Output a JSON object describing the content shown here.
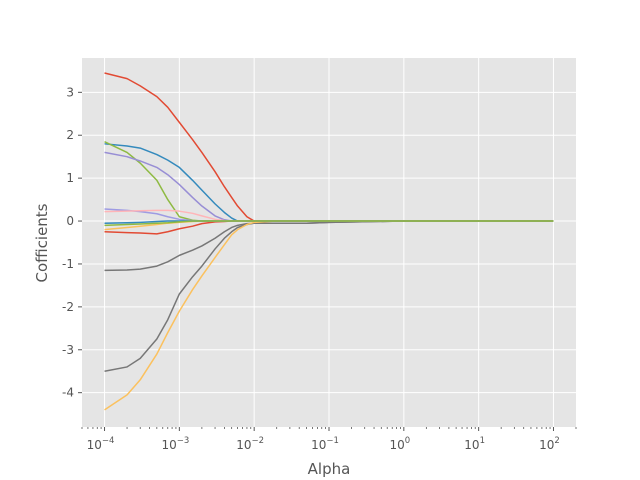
{
  "chart_data": {
    "type": "line",
    "title": "",
    "xlabel": "Alpha",
    "ylabel": "Cofficients",
    "xscale": "log",
    "xlim": [
      5e-05,
      200
    ],
    "ylim": [
      -4.8,
      3.8
    ],
    "grid": true,
    "background": "#E5E5E5",
    "x_ticks": [
      {
        "base": "10",
        "exp": "−4",
        "value": 0.0001
      },
      {
        "base": "10",
        "exp": "−3",
        "value": 0.001
      },
      {
        "base": "10",
        "exp": "−2",
        "value": 0.01
      },
      {
        "base": "10",
        "exp": "−1",
        "value": 0.1
      },
      {
        "base": "10",
        "exp": "0",
        "value": 1
      },
      {
        "base": "10",
        "exp": "1",
        "value": 10
      },
      {
        "base": "10",
        "exp": "2",
        "value": 100
      }
    ],
    "y_ticks": [
      {
        "label": "3",
        "value": 3
      },
      {
        "label": "2",
        "value": 2
      },
      {
        "label": "1",
        "value": 1
      },
      {
        "label": "0",
        "value": 0
      },
      {
        "label": "-1",
        "value": -1
      },
      {
        "label": "-2",
        "value": -2
      },
      {
        "label": "-3",
        "value": -3
      },
      {
        "label": "-4",
        "value": -4
      }
    ],
    "x": [
      0.0001,
      0.0002,
      0.0003,
      0.0005,
      0.0007,
      0.001,
      0.0015,
      0.002,
      0.003,
      0.004,
      0.005,
      0.006,
      0.008,
      0.01,
      0.02,
      0.05,
      0.1,
      1,
      10,
      100
    ],
    "series": [
      {
        "color": "#E24A33",
        "values": [
          3.45,
          3.32,
          3.15,
          2.9,
          2.65,
          2.3,
          1.9,
          1.6,
          1.15,
          0.8,
          0.55,
          0.35,
          0.1,
          0,
          0,
          0,
          0,
          0,
          0,
          0
        ]
      },
      {
        "color": "#348ABD",
        "values": [
          1.8,
          1.75,
          1.7,
          1.55,
          1.42,
          1.25,
          0.95,
          0.72,
          0.4,
          0.2,
          0.07,
          0,
          0,
          0,
          0,
          0,
          0,
          0,
          0,
          0
        ]
      },
      {
        "color": "#8EBA42",
        "values": [
          1.85,
          1.6,
          1.35,
          0.95,
          0.5,
          0.1,
          0.02,
          0,
          0,
          0,
          0,
          0,
          0,
          0,
          0,
          0,
          0,
          0,
          0,
          0
        ]
      },
      {
        "color": "#988ED5",
        "values": [
          1.6,
          1.5,
          1.4,
          1.25,
          1.08,
          0.85,
          0.55,
          0.35,
          0.12,
          0.03,
          0,
          0,
          0,
          0,
          0,
          0,
          0,
          0,
          0,
          0
        ]
      },
      {
        "color": "#9E9BE3",
        "values": [
          0.28,
          0.25,
          0.22,
          0.17,
          0.1,
          0.04,
          0.01,
          0,
          0,
          0,
          0,
          0,
          0,
          0,
          0,
          0,
          0,
          0,
          0,
          0
        ]
      },
      {
        "color": "#FFB5B8",
        "values": [
          0.22,
          0.23,
          0.24,
          0.25,
          0.25,
          0.23,
          0.18,
          0.12,
          0.04,
          0.01,
          0,
          0,
          0,
          0,
          0,
          0,
          0,
          0,
          0,
          0
        ]
      },
      {
        "color": "#777777",
        "values": [
          -1.15,
          -1.14,
          -1.12,
          -1.05,
          -0.95,
          -0.8,
          -0.68,
          -0.58,
          -0.4,
          -0.25,
          -0.15,
          -0.1,
          -0.06,
          -0.05,
          -0.05,
          -0.05,
          -0.03,
          0,
          0,
          0
        ]
      },
      {
        "color": "#777777",
        "values": [
          -3.5,
          -3.4,
          -3.2,
          -2.75,
          -2.3,
          -1.7,
          -1.3,
          -1.05,
          -0.65,
          -0.4,
          -0.25,
          -0.15,
          -0.08,
          -0.05,
          -0.05,
          -0.05,
          -0.03,
          0,
          0,
          0
        ]
      },
      {
        "color": "#FBC15E",
        "values": [
          -4.4,
          -4.05,
          -3.7,
          -3.1,
          -2.6,
          -2.1,
          -1.6,
          -1.28,
          -0.85,
          -0.55,
          -0.32,
          -0.2,
          -0.08,
          -0.03,
          0,
          0,
          0,
          0,
          0,
          0
        ]
      },
      {
        "color": "#E24A33",
        "values": [
          -0.25,
          -0.27,
          -0.28,
          -0.3,
          -0.25,
          -0.18,
          -0.12,
          -0.06,
          -0.02,
          -0.01,
          0,
          0,
          0,
          0,
          0,
          0,
          0,
          0,
          0,
          0
        ]
      },
      {
        "color": "#FBC15E",
        "values": [
          -0.2,
          -0.15,
          -0.12,
          -0.08,
          -0.05,
          -0.03,
          -0.01,
          0,
          0,
          0,
          0,
          0,
          0,
          0,
          0,
          0,
          0,
          0,
          0,
          0
        ]
      },
      {
        "color": "#348ABD",
        "values": [
          -0.05,
          -0.04,
          -0.03,
          -0.01,
          0,
          0,
          0,
          0,
          0,
          0,
          0,
          0,
          0,
          0,
          0,
          0,
          0,
          0,
          0,
          0
        ]
      },
      {
        "color": "#8EBA42",
        "values": [
          -0.1,
          -0.08,
          -0.07,
          -0.05,
          -0.04,
          -0.02,
          0,
          0,
          0,
          0,
          0,
          0,
          0,
          0,
          0,
          0,
          0,
          0,
          0,
          0
        ]
      }
    ]
  }
}
